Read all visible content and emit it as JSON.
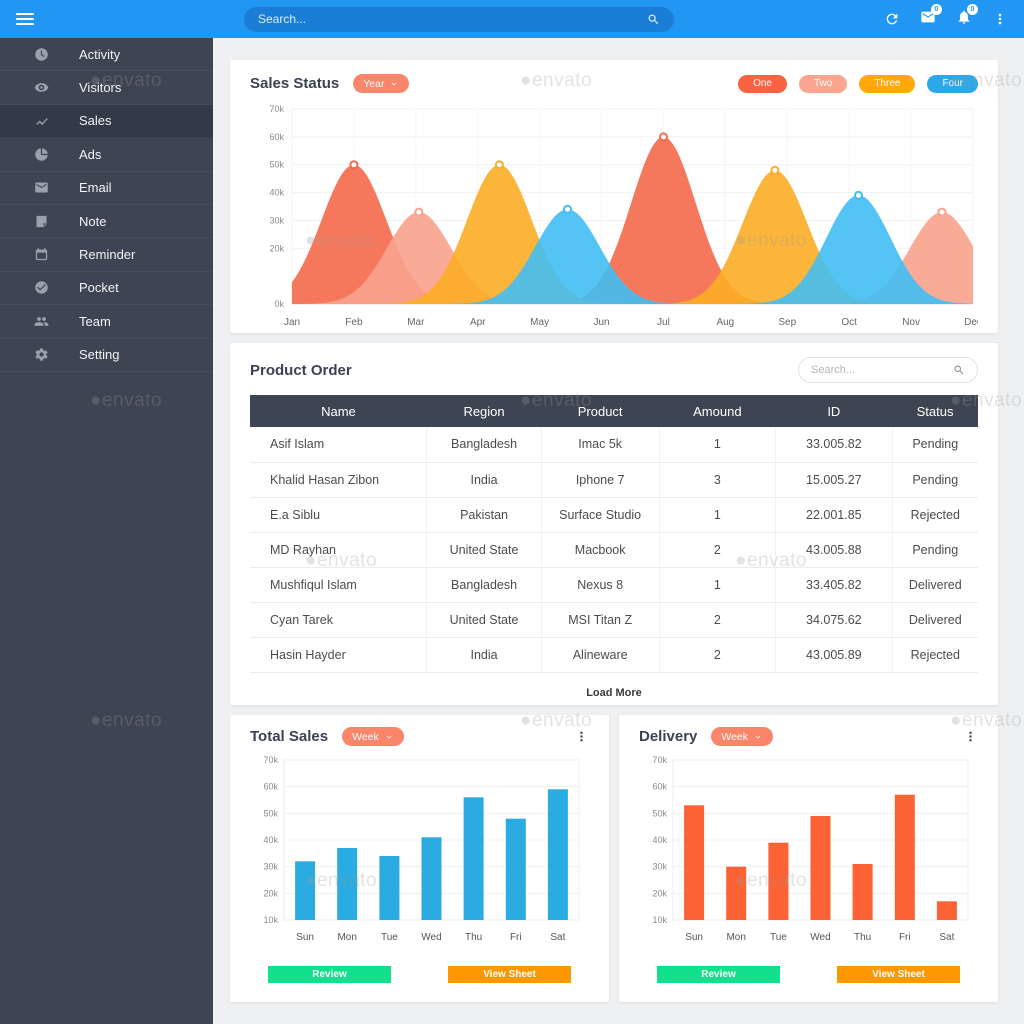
{
  "topbar": {
    "search_placeholder": "Search...",
    "mail_badge": "0",
    "bell_badge": "0"
  },
  "sidebar": {
    "items": [
      {
        "label": "Activity",
        "icon": "clock-icon",
        "active": false
      },
      {
        "label": "Visitors",
        "icon": "eye-icon",
        "active": false
      },
      {
        "label": "Sales",
        "icon": "trending-up-icon",
        "active": true
      },
      {
        "label": "Ads",
        "icon": "pie-chart-icon",
        "active": false
      },
      {
        "label": "Email",
        "icon": "mail-icon",
        "active": false
      },
      {
        "label": "Note",
        "icon": "note-icon",
        "active": false
      },
      {
        "label": "Reminder",
        "icon": "calendar-icon",
        "active": false
      },
      {
        "label": "Pocket",
        "icon": "check-circle-icon",
        "active": false
      },
      {
        "label": "Team",
        "icon": "people-icon",
        "active": false
      },
      {
        "label": "Setting",
        "icon": "gear-icon",
        "active": false
      }
    ]
  },
  "sales_status": {
    "title": "Sales Status",
    "period_selector": "Year",
    "legend": [
      {
        "label": "One",
        "color": "#fa6342"
      },
      {
        "label": "Two",
        "color": "#faa58f"
      },
      {
        "label": "Three",
        "color": "#ffa80a"
      },
      {
        "label": "Four",
        "color": "#2ba7ea"
      }
    ],
    "chart_data": {
      "type": "area",
      "title": "Sales Status",
      "x_labels": [
        "Jan",
        "Feb",
        "Mar",
        "Apr",
        "May",
        "Jun",
        "Jul",
        "Aug",
        "Sep",
        "Oct",
        "Nov",
        "Dec"
      ],
      "y_tick_labels": [
        "70k",
        "60k",
        "50k",
        "40k",
        "30k",
        "20k",
        "0k"
      ],
      "y_tick_values": [
        70,
        60,
        50,
        40,
        30,
        20,
        0
      ],
      "ylim": [
        0,
        70
      ],
      "unit": "thousands",
      "grid": true,
      "series": [
        {
          "name": "One",
          "color": "#f4694b",
          "peaks": [
            {
              "near": "Feb",
              "x": 1.0,
              "value": 50
            },
            {
              "near": "Jul",
              "x": 6.0,
              "value": 60
            }
          ]
        },
        {
          "name": "Two",
          "color": "#f9a28d",
          "peaks": [
            {
              "near": "Mar",
              "x": 2.05,
              "value": 33
            },
            {
              "near": "Nov",
              "x": 10.5,
              "value": 33
            }
          ]
        },
        {
          "name": "Three",
          "color": "#fcad26",
          "peaks": [
            {
              "near": "Apr",
              "x": 3.35,
              "value": 50
            },
            {
              "near": "Sep",
              "x": 7.8,
              "value": 48
            }
          ]
        },
        {
          "name": "Four",
          "color": "#41bef3",
          "peaks": [
            {
              "near": "May",
              "x": 4.45,
              "value": 34
            },
            {
              "near": "Oct",
              "x": 9.15,
              "value": 39
            }
          ]
        }
      ]
    }
  },
  "product_order": {
    "title": "Product Order",
    "search_placeholder": "Search...",
    "columns": [
      "Name",
      "Region",
      "Product",
      "Amound",
      "ID",
      "Status"
    ],
    "rows": [
      [
        "Asif Islam",
        "Bangladesh",
        "Imac 5k",
        "1",
        "33.005.82",
        "Pending"
      ],
      [
        "Khalid Hasan Zibon",
        "India",
        "Iphone 7",
        "3",
        "15.005.27",
        "Pending"
      ],
      [
        "E.a Siblu",
        "Pakistan",
        "Surface Studio",
        "1",
        "22.001.85",
        "Rejected"
      ],
      [
        "MD Rayhan",
        "United State",
        "Macbook",
        "2",
        "43.005.88",
        "Pending"
      ],
      [
        "Mushfiqul Islam",
        "Bangladesh",
        "Nexus 8",
        "1",
        "33.405.82",
        "Delivered"
      ],
      [
        "Cyan Tarek",
        "United State",
        "MSI Titan Z",
        "2",
        "34.075.62",
        "Delivered"
      ],
      [
        "Hasin Hayder",
        "India",
        "Alineware",
        "2",
        "43.005.89",
        "Rejected"
      ]
    ],
    "load_more_label": "Load More"
  },
  "total_sales": {
    "title": "Total Sales",
    "period_selector": "Week",
    "review_label": "Review",
    "view_sheet_label": "View Sheet",
    "chart_data": {
      "type": "bar",
      "title": "Total Sales",
      "categories": [
        "Sun",
        "Mon",
        "Tue",
        "Wed",
        "Thu",
        "Fri",
        "Sat"
      ],
      "values": [
        32,
        37,
        34,
        41,
        56,
        48,
        59
      ],
      "unit": "thousands",
      "bar_color": "#2aace3",
      "ylim": [
        10,
        70
      ],
      "y_tick_labels": [
        "70k",
        "60k",
        "50k",
        "40k",
        "30k",
        "20k",
        "10k"
      ],
      "y_tick_values": [
        70,
        60,
        50,
        40,
        30,
        20,
        10
      ],
      "grid": true
    }
  },
  "delivery": {
    "title": "Delivery",
    "period_selector": "Week",
    "review_label": "Review",
    "view_sheet_label": "View Sheet",
    "chart_data": {
      "type": "bar",
      "title": "Delivery",
      "categories": [
        "Sun",
        "Mon",
        "Tue",
        "Wed",
        "Thu",
        "Fri",
        "Sat"
      ],
      "values": [
        53,
        30,
        39,
        49,
        31,
        57,
        17
      ],
      "unit": "thousands",
      "bar_color": "#fb6234",
      "ylim": [
        10,
        70
      ],
      "y_tick_labels": [
        "70k",
        "60k",
        "50k",
        "40k",
        "30k",
        "20k",
        "10k"
      ],
      "y_tick_values": [
        70,
        60,
        50,
        40,
        30,
        20,
        10
      ],
      "grid": true
    }
  },
  "watermark": {
    "text": "envato"
  },
  "colors": {
    "topbar_blue": "#2196f3",
    "sidebar_slate": "#3d4452",
    "pill_salmon": "#f9856b",
    "button_green": "#12e08c",
    "button_orange": "#ff9800"
  }
}
